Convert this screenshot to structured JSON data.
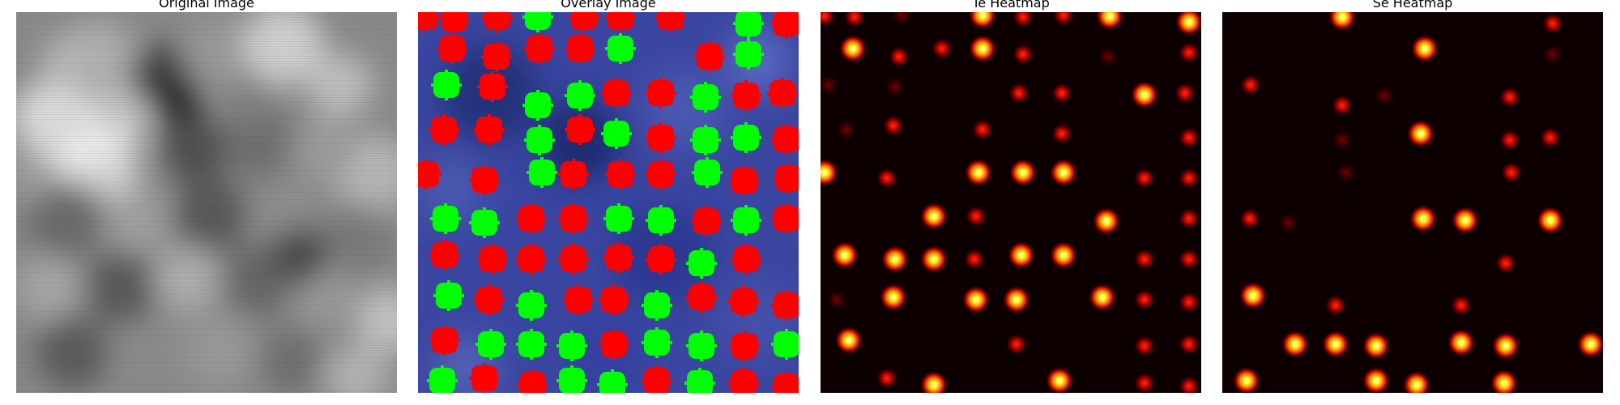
{
  "panels": [
    {
      "title": "Original Image"
    },
    {
      "title": "Overlay Image"
    },
    {
      "title": "Te Heatmap"
    },
    {
      "title": "Se Heatmap"
    }
  ],
  "colors": {
    "figure_background": "#ffffff",
    "overlay_background": "#2e3a8c",
    "te_marker": "#ff0000",
    "se_marker": "#00ff00",
    "heatmap_background": "#0c0000"
  }
}
